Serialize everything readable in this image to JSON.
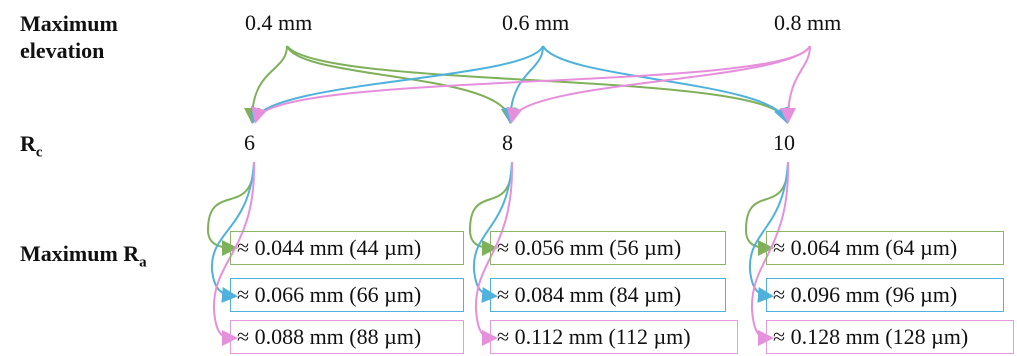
{
  "labels": {
    "max_elevation_line1": "Maximum",
    "max_elevation_line2": "elevation",
    "rc_main": "R",
    "rc_sub": "c",
    "max_ra_main": "Maximum R",
    "max_ra_sub": "a"
  },
  "elevations": [
    "0.4 mm",
    "0.6 mm",
    "0.8 mm"
  ],
  "rc_values": [
    "6",
    "8",
    "10"
  ],
  "ra_groups": [
    {
      "rc": "6",
      "values": [
        "≈ 0.044 mm (44 µm)",
        "≈ 0.066 mm (66 µm)",
        "≈ 0.088 mm (88 µm)"
      ]
    },
    {
      "rc": "8",
      "values": [
        "≈ 0.056 mm (56 µm)",
        "≈ 0.084 mm (84 µm)",
        "≈ 0.112 mm (112 µm)"
      ]
    },
    {
      "rc": "10",
      "values": [
        "≈ 0.064 mm (64 µm)",
        "≈ 0.096 mm (96 µm)",
        "≈ 0.128 mm (128 µm)"
      ]
    }
  ],
  "colors": {
    "elevation_0_4": "#7fb05a",
    "elevation_0_6": "#4fb2dc",
    "elevation_0_8": "#e690dc"
  }
}
